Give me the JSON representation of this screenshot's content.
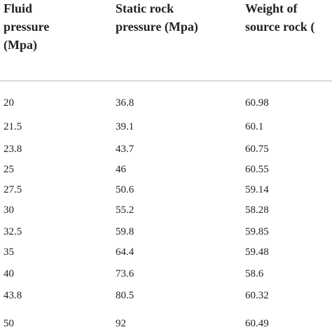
{
  "table": {
    "header": [
      [
        "Fluid",
        "pressure",
        "(Mpa)"
      ],
      [
        "Static rock",
        "pressure (Mpa)"
      ],
      [
        "Weight of",
        "source rock ("
      ]
    ],
    "rows": [
      [
        "20",
        "36.8",
        "60.98"
      ],
      [
        "21.5",
        "39.1",
        "60.1"
      ],
      [
        "23.8",
        "43.7",
        "60.75"
      ],
      [
        "25",
        "46",
        "60.55"
      ],
      [
        "27.5",
        "50.6",
        "59.14"
      ],
      [
        "30",
        "55.2",
        "58.28"
      ],
      [
        "32.5",
        "59.8",
        "59.85"
      ],
      [
        "35",
        "64.4",
        "59.48"
      ],
      [
        "40",
        "73.6",
        "58.6"
      ],
      [
        "43.8",
        "80.5",
        "60.32"
      ],
      [
        "50",
        "92",
        "60.49"
      ]
    ]
  }
}
